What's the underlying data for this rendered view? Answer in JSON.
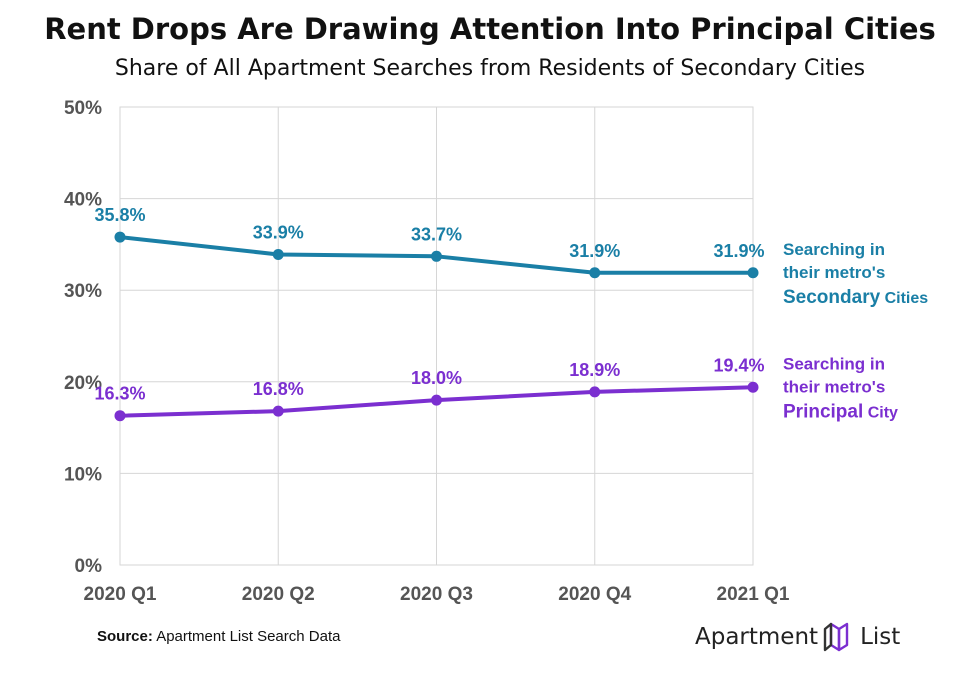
{
  "title": "Rent Drops Are Drawing Attention Into Principal Cities",
  "subtitle": "Share of All Apartment Searches from Residents of Secondary Cities",
  "source_label": "Source:",
  "source_text": "Apartment List Search Data",
  "logo": {
    "word1": "Apartment",
    "word2": "List",
    "icon": "apartment-list-logo-icon"
  },
  "colors": {
    "secondary": "#1a7fa6",
    "principal": "#7b2fd0",
    "grid": "#d6d6d6",
    "axis_text": "#555555"
  },
  "chart_data": {
    "type": "line",
    "categories": [
      "2020 Q1",
      "2020 Q2",
      "2020 Q3",
      "2020 Q4",
      "2021 Q1"
    ],
    "ylim": [
      0,
      50
    ],
    "yticks": [
      0,
      10,
      20,
      30,
      40,
      50
    ],
    "ytick_labels": [
      "0%",
      "10%",
      "20%",
      "30%",
      "40%",
      "50%"
    ],
    "series": [
      {
        "name": "Secondary",
        "values": [
          35.8,
          33.9,
          33.7,
          31.9,
          31.9
        ],
        "labels": [
          "35.8%",
          "33.9%",
          "33.7%",
          "31.9%",
          "31.9%"
        ],
        "legend_lines": [
          "Searching in",
          "their metro's"
        ],
        "legend_emph": "Secondary",
        "legend_tail": " Cities"
      },
      {
        "name": "Principal",
        "values": [
          16.3,
          16.8,
          18.0,
          18.9,
          19.4
        ],
        "labels": [
          "16.3%",
          "16.8%",
          "18.0%",
          "18.9%",
          "19.4%"
        ],
        "legend_lines": [
          "Searching in",
          "their metro's"
        ],
        "legend_emph": "Principal",
        "legend_tail": " City"
      }
    ]
  }
}
